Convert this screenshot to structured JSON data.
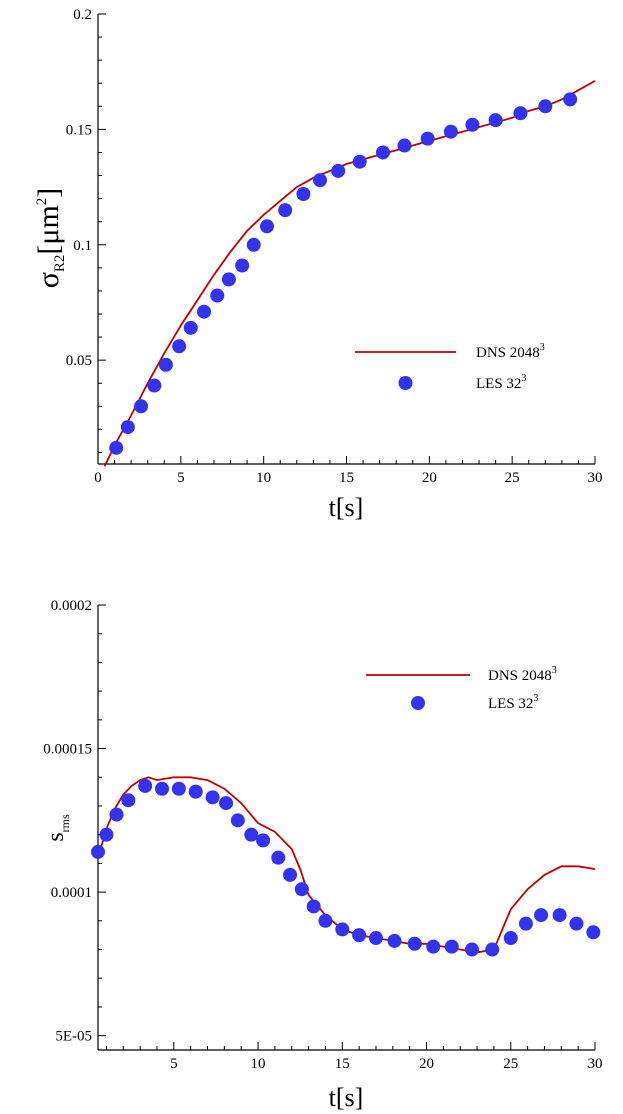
{
  "colors": {
    "dns": "#c00000",
    "les": "#3333ee",
    "axis": "#000000"
  },
  "chart_data": [
    {
      "type": "line",
      "xlabel": {
        "main": "t",
        "bracket_open": "[",
        "unit": "s",
        "bracket_close": "]"
      },
      "ylabel": {
        "symbol": "σ",
        "subscript": "R2",
        "bracket_open": "[",
        "unit": "μm",
        "superscript": "2",
        "bracket_close": "]"
      },
      "xlim": [
        0,
        30
      ],
      "ylim": [
        0.005,
        0.2
      ],
      "xticks": [
        0,
        5,
        10,
        15,
        20,
        25,
        30
      ],
      "xtick_labels": [
        "0",
        "5",
        "10",
        "15",
        "20",
        "25",
        "30"
      ],
      "yticks": [
        0.05,
        0.1,
        0.15,
        0.2
      ],
      "ytick_labels": [
        "0.05",
        "0.1",
        "0.15",
        "0.2"
      ],
      "grid": false,
      "legend_position": "center-right",
      "series": [
        {
          "name": "DNS 2048",
          "name_sup": "3",
          "style": "line",
          "x": [
            0.4,
            1,
            2,
            3,
            4,
            5,
            6,
            7,
            8,
            9,
            10,
            11,
            12,
            13,
            14,
            15,
            16,
            17,
            18,
            19,
            20,
            21,
            22,
            23,
            24,
            25,
            26,
            27,
            28,
            29,
            30
          ],
          "y": [
            0.004,
            0.013,
            0.026,
            0.04,
            0.053,
            0.065,
            0.076,
            0.087,
            0.097,
            0.106,
            0.113,
            0.119,
            0.125,
            0.129,
            0.132,
            0.135,
            0.137,
            0.139,
            0.141,
            0.143,
            0.145,
            0.147,
            0.149,
            0.151,
            0.153,
            0.155,
            0.158,
            0.16,
            0.163,
            0.167,
            0.171
          ]
        },
        {
          "name": "LES 32",
          "name_sup": "3",
          "style": "markers",
          "x": [
            1.1,
            1.8,
            2.6,
            3.4,
            4.1,
            4.9,
            5.6,
            6.4,
            7.2,
            7.9,
            8.7,
            9.4,
            10.2,
            11.3,
            12.4,
            13.4,
            14.5,
            15.8,
            17.2,
            18.5,
            19.9,
            21.3,
            22.6,
            24.0,
            25.5,
            27.0,
            28.5
          ],
          "y": [
            0.012,
            0.021,
            0.03,
            0.039,
            0.048,
            0.056,
            0.064,
            0.071,
            0.078,
            0.085,
            0.091,
            0.1,
            0.108,
            0.115,
            0.122,
            0.128,
            0.132,
            0.136,
            0.14,
            0.143,
            0.146,
            0.149,
            0.152,
            0.154,
            0.157,
            0.16,
            0.163
          ]
        }
      ]
    },
    {
      "type": "line",
      "xlabel": {
        "main": "t",
        "bracket_open": "[",
        "unit": "s",
        "bracket_close": "]"
      },
      "ylabel": {
        "symbol": "s",
        "subscript": "rms"
      },
      "xlim": [
        0.5,
        30
      ],
      "ylim": [
        4.5e-05,
        0.0002
      ],
      "xticks": [
        5,
        10,
        15,
        20,
        25,
        30
      ],
      "xtick_labels": [
        "5",
        "10",
        "15",
        "20",
        "25",
        "30"
      ],
      "yticks": [
        5e-05,
        0.0001,
        0.00015,
        0.0002
      ],
      "ytick_labels": [
        "5E-05",
        "0.0001",
        "0.00015",
        "0.0002"
      ],
      "grid": false,
      "legend_position": "top-right",
      "series": [
        {
          "name": "DNS 2048",
          "name_sup": "3",
          "style": "line",
          "x": [
            0.5,
            1,
            1.5,
            2,
            2.5,
            3,
            3.5,
            4,
            5,
            6,
            7,
            8,
            9,
            10,
            11,
            12,
            12.5,
            13,
            14,
            15,
            16,
            17,
            18,
            19,
            20,
            21,
            22,
            23,
            24,
            25,
            26,
            27,
            28,
            28.5,
            29,
            30
          ],
          "y": [
            0.000112,
            0.000122,
            0.000129,
            0.000134,
            0.000137,
            0.000139,
            0.00014,
            0.000139,
            0.00014,
            0.00014,
            0.000139,
            0.000136,
            0.000131,
            0.000124,
            0.000121,
            0.000115,
            0.000108,
            9.9e-05,
            9.2e-05,
            8.7e-05,
            8.5e-05,
            8.4e-05,
            8.3e-05,
            8.2e-05,
            8.2e-05,
            8.1e-05,
            8e-05,
            7.9e-05,
            8e-05,
            9.4e-05,
            0.000101,
            0.000106,
            0.000109,
            0.000109,
            0.000109,
            0.000108
          ]
        },
        {
          "name": "LES 32",
          "name_sup": "3",
          "style": "markers",
          "x": [
            0.5,
            1.0,
            1.6,
            2.3,
            3.3,
            4.3,
            5.3,
            6.3,
            7.3,
            8.1,
            8.8,
            9.6,
            10.3,
            11.2,
            11.9,
            12.6,
            13.3,
            14.0,
            15.0,
            16.0,
            17.0,
            18.1,
            19.3,
            20.4,
            21.5,
            22.7,
            23.9,
            25.0,
            25.9,
            26.8,
            27.9,
            28.9,
            29.9
          ],
          "y": [
            0.000114,
            0.00012,
            0.000127,
            0.000132,
            0.000137,
            0.000136,
            0.000136,
            0.000135,
            0.000133,
            0.000131,
            0.000125,
            0.00012,
            0.000118,
            0.000112,
            0.000106,
            0.000101,
            9.5e-05,
            9e-05,
            8.7e-05,
            8.5e-05,
            8.4e-05,
            8.3e-05,
            8.2e-05,
            8.1e-05,
            8.1e-05,
            8e-05,
            8e-05,
            8.4e-05,
            8.9e-05,
            9.2e-05,
            9.2e-05,
            8.9e-05,
            8.6e-05
          ]
        }
      ]
    }
  ]
}
